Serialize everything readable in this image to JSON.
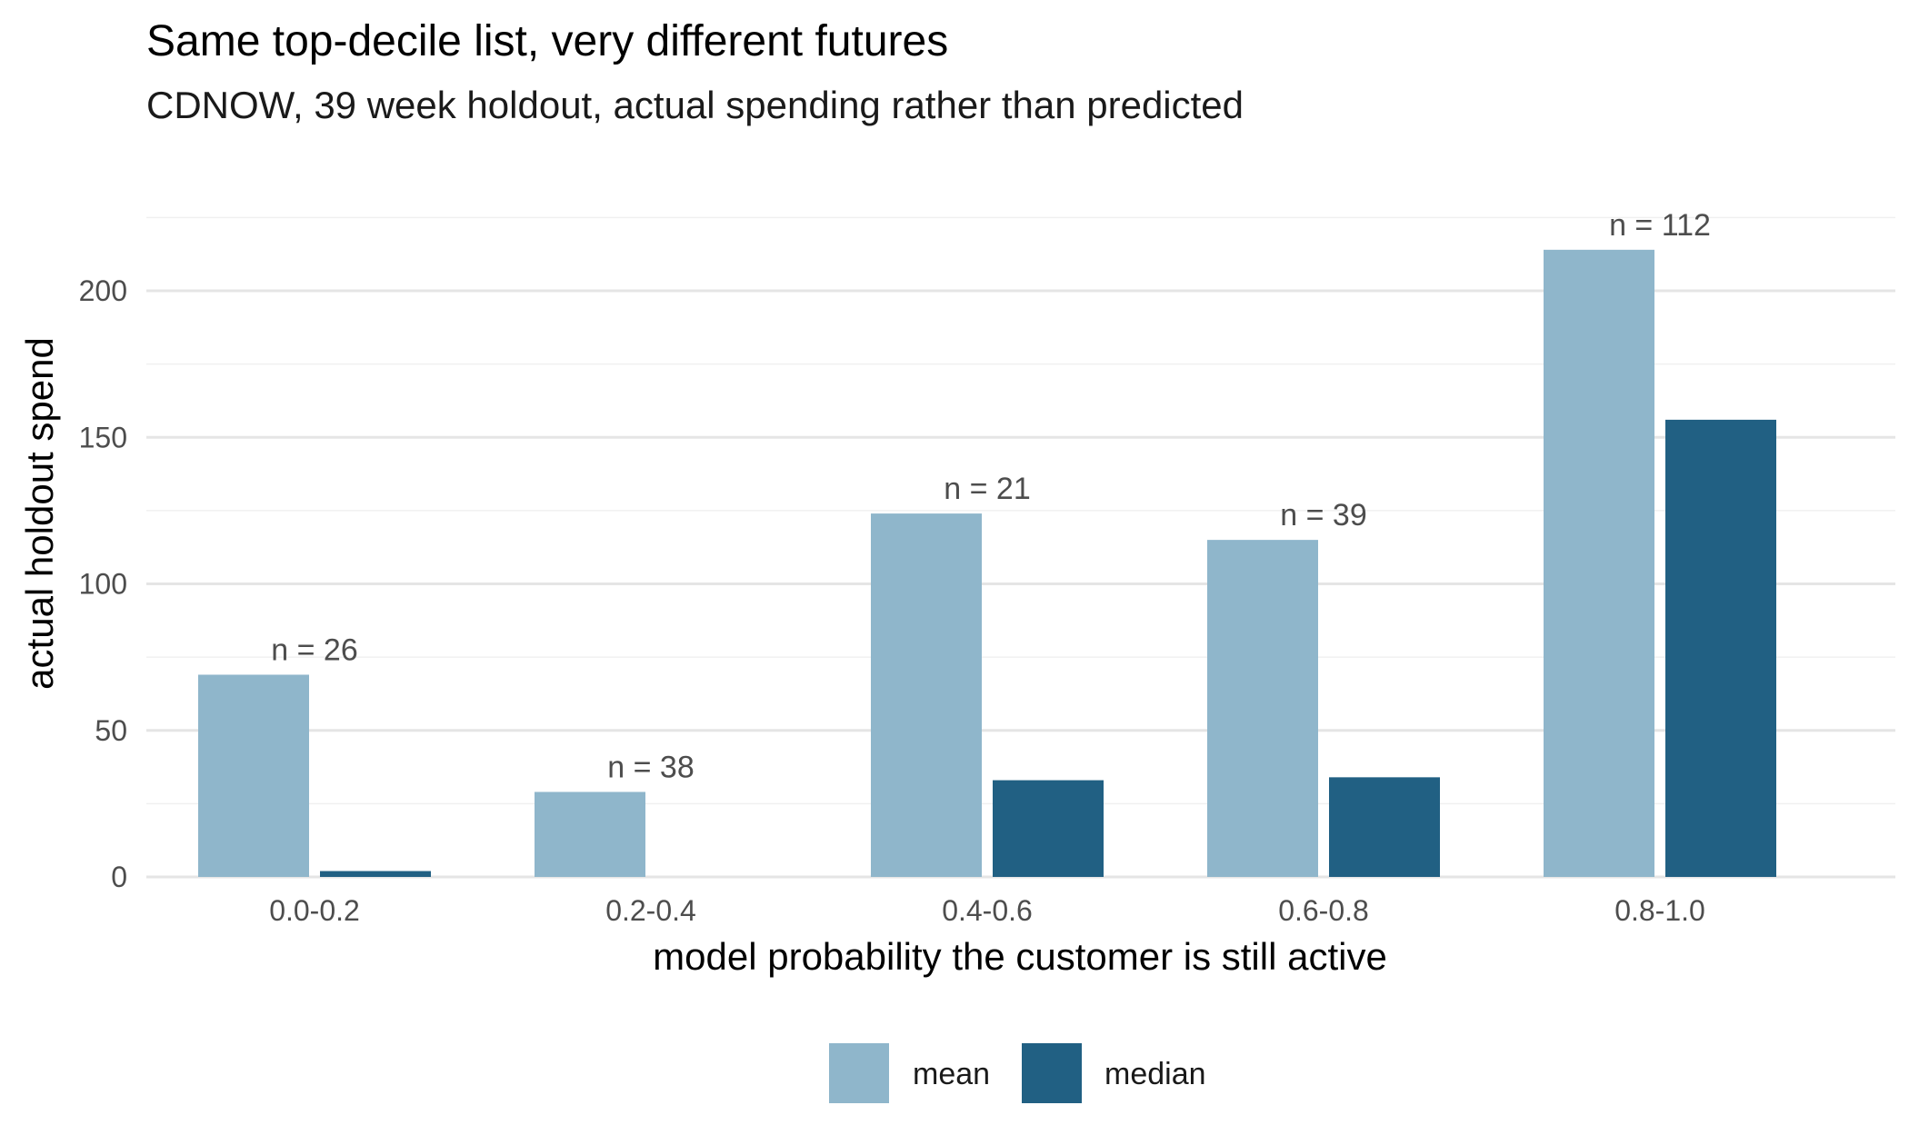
{
  "chart_data": {
    "type": "bar",
    "title": "Same top-decile list, very different futures",
    "subtitle": "CDNOW, 39 week holdout, actual spending rather than predicted",
    "xlabel": "model probability the customer is still active",
    "ylabel": "actual holdout spend",
    "categories": [
      "0.0-0.2",
      "0.2-0.4",
      "0.4-0.6",
      "0.6-0.8",
      "0.8-1.0"
    ],
    "series": [
      {
        "name": "mean",
        "color": "#8fb6cb",
        "values": [
          69,
          29,
          124,
          115,
          214
        ]
      },
      {
        "name": "median",
        "color": "#216083",
        "values": [
          2,
          0,
          33,
          34,
          156
        ]
      }
    ],
    "annotations": [
      "n = 26",
      "n = 38",
      "n = 21",
      "n = 39",
      "n = 112"
    ],
    "ylim": [
      0,
      225
    ],
    "yticks": [
      0,
      50,
      100,
      150,
      200
    ],
    "grid": true,
    "legend_position": "bottom"
  }
}
